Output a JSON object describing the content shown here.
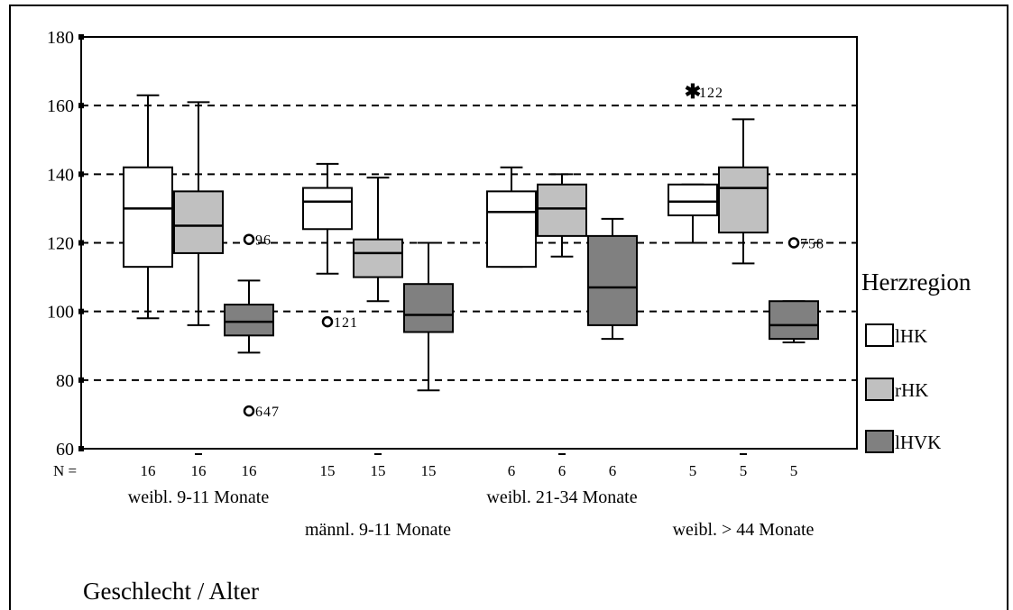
{
  "chart_data": {
    "type": "box",
    "title": "",
    "xlabel": "Geschlecht / Alter",
    "ylabel": "",
    "ylim": [
      60,
      180
    ],
    "yticks": [
      60,
      80,
      100,
      120,
      140,
      160,
      180
    ],
    "gridlines_dashed": [
      80,
      100,
      120,
      140,
      160
    ],
    "n_prefix": "N =",
    "legend": {
      "title": "Herzregion",
      "position": "right"
    },
    "series": [
      {
        "name": "lHK",
        "color": "#ffffff"
      },
      {
        "name": "rHK",
        "color": "#c0c0c0"
      },
      {
        "name": "lHVK",
        "color": "#808080"
      }
    ],
    "groups": [
      {
        "label": "weibl. 9-11 Monate",
        "label_row": 1,
        "boxes": [
          {
            "series": "lHK",
            "n": "16",
            "min": 98,
            "q1": 113,
            "median": 130,
            "q3": 142,
            "max": 163
          },
          {
            "series": "rHK",
            "n": "16",
            "min": 96,
            "q1": 117,
            "median": 125,
            "q3": 135,
            "max": 161
          },
          {
            "series": "lHVK",
            "n": "16",
            "min": 88,
            "q1": 93,
            "median": 97,
            "q3": 102,
            "max": 109
          }
        ],
        "outliers": [
          {
            "series": "lHVK",
            "value": 121,
            "label": "96",
            "symbol": "circle"
          },
          {
            "series": "lHVK",
            "value": 71,
            "label": "647",
            "symbol": "circle"
          }
        ]
      },
      {
        "label": "männl. 9-11 Monate",
        "label_row": 2,
        "boxes": [
          {
            "series": "lHK",
            "n": "15",
            "min": 111,
            "q1": 124,
            "median": 132,
            "q3": 136,
            "max": 143
          },
          {
            "series": "rHK",
            "n": "15",
            "min": 103,
            "q1": 110,
            "median": 117,
            "q3": 121,
            "max": 139
          },
          {
            "series": "lHVK",
            "n": "15",
            "min": 77,
            "q1": 94,
            "median": 99,
            "q3": 108,
            "max": 120
          }
        ],
        "outliers": [
          {
            "series": "lHK",
            "value": 97,
            "label": "121",
            "symbol": "circle"
          }
        ]
      },
      {
        "label": "weibl. 21-34 Monate",
        "label_row": 1,
        "boxes": [
          {
            "series": "lHK",
            "n": "6",
            "min": 113,
            "q1": 113,
            "median": 129,
            "q3": 135,
            "max": 142
          },
          {
            "series": "rHK",
            "n": "6",
            "min": 116,
            "q1": 122,
            "median": 130,
            "q3": 137,
            "max": 140
          },
          {
            "series": "lHVK",
            "n": "6",
            "min": 92,
            "q1": 96,
            "median": 107,
            "q3": 122,
            "max": 127
          }
        ],
        "outliers": []
      },
      {
        "label": "weibl. > 44 Monate",
        "label_row": 2,
        "boxes": [
          {
            "series": "lHK",
            "n": "5",
            "min": 120,
            "q1": 128,
            "median": 132,
            "q3": 137,
            "max": 137
          },
          {
            "series": "rHK",
            "n": "5",
            "min": 114,
            "q1": 123,
            "median": 136,
            "q3": 142,
            "max": 156
          },
          {
            "series": "lHVK",
            "n": "5",
            "min": 91,
            "q1": 92,
            "median": 96,
            "q3": 103,
            "max": 103
          }
        ],
        "outliers": [
          {
            "series": "lHK",
            "value": 164,
            "label": "122",
            "symbol": "star"
          },
          {
            "series": "lHVK",
            "value": 120,
            "label": "758",
            "symbol": "circle"
          }
        ]
      }
    ]
  }
}
